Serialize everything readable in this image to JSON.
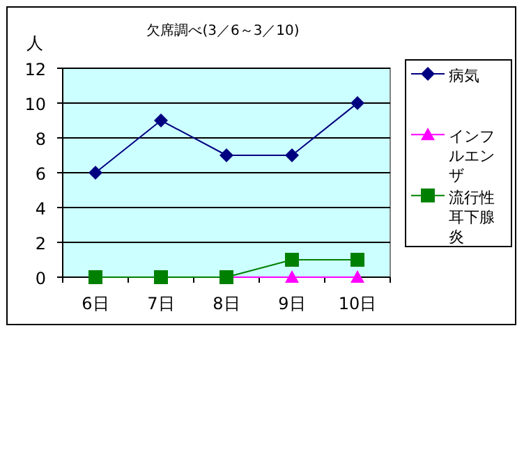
{
  "chart_data": {
    "type": "line",
    "title": "欠席調べ(3／6～3／10)",
    "ylabel": "人",
    "categories": [
      "6日",
      "7日",
      "8日",
      "9日",
      "10日"
    ],
    "series": [
      {
        "name": "病気",
        "color": "#000080",
        "marker": "diamond",
        "values": [
          6,
          9,
          7,
          7,
          10
        ]
      },
      {
        "name": "インフルエンザ",
        "color": "#ff00ff",
        "marker": "triangle",
        "values": [
          null,
          null,
          0,
          0,
          0
        ]
      },
      {
        "name": "流行性耳下腺炎",
        "color": "#008000",
        "marker": "square",
        "values": [
          0,
          0,
          0,
          1,
          1
        ]
      }
    ],
    "ylim": [
      0,
      12
    ],
    "yticks": [
      0,
      2,
      4,
      6,
      8,
      10,
      12
    ],
    "grid": "y",
    "legend": "right"
  }
}
